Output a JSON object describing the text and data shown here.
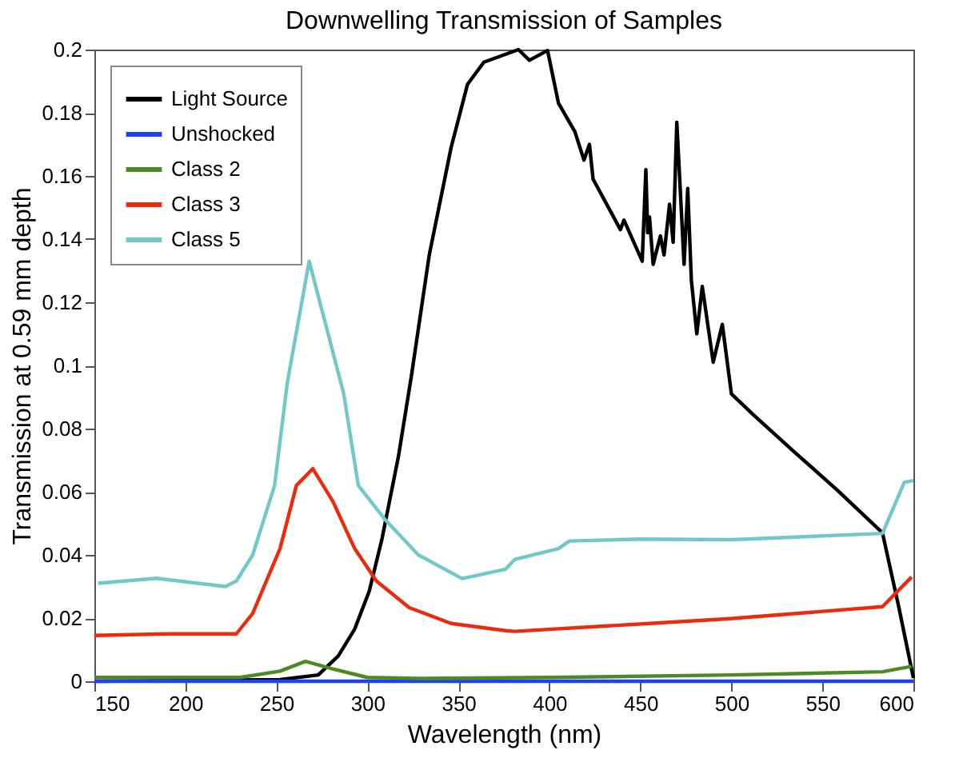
{
  "chart_data": {
    "type": "line",
    "title": "Downwelling Transmission of Samples",
    "xlabel": "Wavelength (nm)",
    "ylabel": "Transmission at 0.59 mm depth",
    "xlim": [
      150,
      600
    ],
    "xticks": [
      150,
      200,
      250,
      300,
      350,
      400,
      450,
      500,
      550,
      600
    ],
    "ylim": [
      0,
      0.2
    ],
    "yticks": [
      0,
      0.02,
      0.04,
      0.06,
      0.08,
      0.1,
      0.12,
      0.14,
      0.16,
      0.18,
      0.2
    ],
    "grid": false,
    "legend": "top left",
    "line_style": "solid",
    "marker": "none",
    "series": [
      {
        "name": "Light Source",
        "color": "#000000",
        "x": [
          150,
          252,
          273,
          284,
          293,
          301,
          308,
          317,
          324,
          334,
          346,
          355,
          364,
          383,
          389,
          399,
          405,
          414,
          419,
          422,
          424,
          439,
          441,
          451,
          453,
          454,
          455,
          457,
          461,
          463,
          466,
          468,
          470,
          474,
          476,
          478,
          481,
          484,
          490,
          495,
          500,
          512,
          535,
          558,
          583,
          592,
          600
        ],
        "values": [
          0,
          0.0005,
          0.002,
          0.008,
          0.0165,
          0.0285,
          0.045,
          0.071,
          0.096,
          0.135,
          0.169,
          0.189,
          0.196,
          0.2,
          0.1966,
          0.1997,
          0.183,
          0.174,
          0.165,
          0.17,
          0.159,
          0.143,
          0.146,
          0.133,
          0.162,
          0.142,
          0.147,
          0.132,
          0.141,
          0.135,
          0.151,
          0.139,
          0.177,
          0.132,
          0.156,
          0.127,
          0.11,
          0.125,
          0.101,
          0.113,
          0.091,
          0.0844,
          0.0724,
          0.0606,
          0.047,
          0.0234,
          0.001
        ]
      },
      {
        "name": "Unshocked",
        "color": "#1f3fff",
        "x": [
          150,
          600
        ],
        "values": [
          0,
          0
        ]
      },
      {
        "name": "Class 2",
        "color": "#4e8a23",
        "x": [
          150,
          230,
          252,
          266,
          281,
          300,
          330,
          400,
          500,
          583,
          599
        ],
        "values": [
          0.0012,
          0.0012,
          0.0032,
          0.0063,
          0.0039,
          0.0012,
          0.0009,
          0.0012,
          0.002,
          0.003,
          0.0047
        ]
      },
      {
        "name": "Class 3",
        "color": "#ec2a0c",
        "x": [
          150,
          190,
          228,
          237,
          252,
          261,
          270,
          281,
          293,
          305,
          323,
          346,
          376,
          381,
          455,
          499,
          583,
          599
        ],
        "values": [
          0.0145,
          0.015,
          0.015,
          0.0215,
          0.042,
          0.062,
          0.0673,
          0.057,
          0.042,
          0.0317,
          0.0233,
          0.0183,
          0.016,
          0.0158,
          0.0183,
          0.0198,
          0.0236,
          0.033
        ]
      },
      {
        "name": "Class 5",
        "color": "#72c8c8",
        "x": [
          152,
          184,
          222,
          228,
          237,
          249,
          256,
          268,
          287,
          295,
          310,
          328,
          352,
          376,
          381,
          405,
          411,
          450,
          500,
          583,
          595,
          600
        ],
        "values": [
          0.031,
          0.0326,
          0.03,
          0.0317,
          0.04,
          0.062,
          0.0945,
          0.133,
          0.091,
          0.062,
          0.051,
          0.04,
          0.0325,
          0.0355,
          0.0386,
          0.042,
          0.0444,
          0.045,
          0.0448,
          0.0468,
          0.063,
          0.0635
        ]
      }
    ]
  }
}
